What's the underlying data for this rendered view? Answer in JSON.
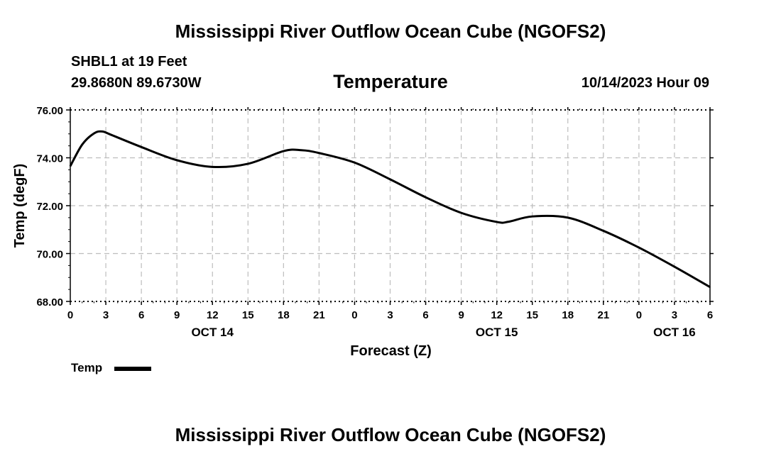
{
  "page": {
    "title_top": "Mississippi River Outflow Ocean Cube (NGOFS2)",
    "title_bottom": "Mississippi River Outflow Ocean Cube (NGOFS2)",
    "station": "SHBL1 at 19 Feet",
    "coords": "29.8680N  89.6730W",
    "subtitle": "Temperature",
    "timestamp": "10/14/2023 Hour 09"
  },
  "legend": {
    "label": "Temp"
  },
  "chart_data": {
    "type": "line",
    "title": "Temperature",
    "xlabel": "Forecast (Z)",
    "ylabel": "Temp (degF)",
    "ylim": [
      68,
      76
    ],
    "xlim": [
      0,
      54
    ],
    "grid": true,
    "y_ticks": [
      "68.00",
      "70.00",
      "72.00",
      "74.00",
      "76.00"
    ],
    "x_ticks": [
      "0",
      "3",
      "6",
      "9",
      "12",
      "15",
      "18",
      "21",
      "0",
      "3",
      "6",
      "9",
      "12",
      "15",
      "18",
      "21",
      "0",
      "3",
      "6"
    ],
    "date_labels": [
      {
        "label": "OCT 14",
        "hour": 12
      },
      {
        "label": "OCT 15",
        "hour": 36
      },
      {
        "label": "OCT 16",
        "hour": 51
      }
    ],
    "series": [
      {
        "name": "Temp",
        "color": "#000000",
        "x": [
          0,
          1,
          2,
          2.7,
          3.5,
          6,
          9,
          12,
          15,
          18,
          19.5,
          21,
          24,
          27,
          30,
          33,
          36,
          37,
          39,
          42,
          45,
          48,
          51,
          54
        ],
        "values": [
          73.65,
          74.55,
          75.02,
          75.1,
          74.95,
          74.45,
          73.9,
          73.62,
          73.75,
          74.28,
          74.32,
          74.2,
          73.8,
          73.1,
          72.35,
          71.7,
          71.32,
          71.33,
          71.55,
          71.5,
          70.95,
          70.25,
          69.45,
          68.6
        ]
      }
    ]
  }
}
